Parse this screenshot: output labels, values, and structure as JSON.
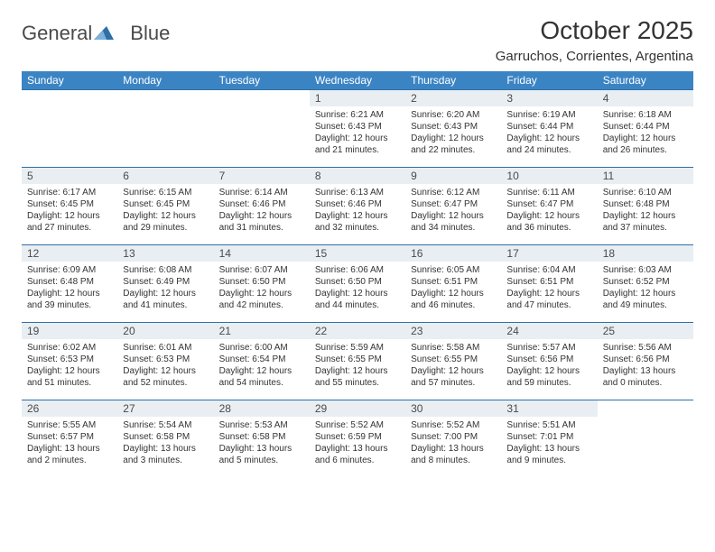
{
  "brand": {
    "word1": "General",
    "word2": "Blue"
  },
  "title": "October 2025",
  "location": "Garruchos, Corrientes, Argentina",
  "colors": {
    "header_bg": "#3b84c4",
    "header_text": "#ffffff",
    "rule": "#2f6fa8",
    "daynum_bg": "#e9eef2",
    "text": "#333333",
    "brand_gray": "#4a4a4a",
    "brand_blue": "#2f6fa8"
  },
  "weekdays": [
    "Sunday",
    "Monday",
    "Tuesday",
    "Wednesday",
    "Thursday",
    "Friday",
    "Saturday"
  ],
  "weeks": [
    [
      {
        "empty": true
      },
      {
        "empty": true
      },
      {
        "empty": true
      },
      {
        "n": "1",
        "sr": "Sunrise: 6:21 AM",
        "ss": "Sunset: 6:43 PM",
        "d1": "Daylight: 12 hours",
        "d2": "and 21 minutes."
      },
      {
        "n": "2",
        "sr": "Sunrise: 6:20 AM",
        "ss": "Sunset: 6:43 PM",
        "d1": "Daylight: 12 hours",
        "d2": "and 22 minutes."
      },
      {
        "n": "3",
        "sr": "Sunrise: 6:19 AM",
        "ss": "Sunset: 6:44 PM",
        "d1": "Daylight: 12 hours",
        "d2": "and 24 minutes."
      },
      {
        "n": "4",
        "sr": "Sunrise: 6:18 AM",
        "ss": "Sunset: 6:44 PM",
        "d1": "Daylight: 12 hours",
        "d2": "and 26 minutes."
      }
    ],
    [
      {
        "n": "5",
        "sr": "Sunrise: 6:17 AM",
        "ss": "Sunset: 6:45 PM",
        "d1": "Daylight: 12 hours",
        "d2": "and 27 minutes."
      },
      {
        "n": "6",
        "sr": "Sunrise: 6:15 AM",
        "ss": "Sunset: 6:45 PM",
        "d1": "Daylight: 12 hours",
        "d2": "and 29 minutes."
      },
      {
        "n": "7",
        "sr": "Sunrise: 6:14 AM",
        "ss": "Sunset: 6:46 PM",
        "d1": "Daylight: 12 hours",
        "d2": "and 31 minutes."
      },
      {
        "n": "8",
        "sr": "Sunrise: 6:13 AM",
        "ss": "Sunset: 6:46 PM",
        "d1": "Daylight: 12 hours",
        "d2": "and 32 minutes."
      },
      {
        "n": "9",
        "sr": "Sunrise: 6:12 AM",
        "ss": "Sunset: 6:47 PM",
        "d1": "Daylight: 12 hours",
        "d2": "and 34 minutes."
      },
      {
        "n": "10",
        "sr": "Sunrise: 6:11 AM",
        "ss": "Sunset: 6:47 PM",
        "d1": "Daylight: 12 hours",
        "d2": "and 36 minutes."
      },
      {
        "n": "11",
        "sr": "Sunrise: 6:10 AM",
        "ss": "Sunset: 6:48 PM",
        "d1": "Daylight: 12 hours",
        "d2": "and 37 minutes."
      }
    ],
    [
      {
        "n": "12",
        "sr": "Sunrise: 6:09 AM",
        "ss": "Sunset: 6:48 PM",
        "d1": "Daylight: 12 hours",
        "d2": "and 39 minutes."
      },
      {
        "n": "13",
        "sr": "Sunrise: 6:08 AM",
        "ss": "Sunset: 6:49 PM",
        "d1": "Daylight: 12 hours",
        "d2": "and 41 minutes."
      },
      {
        "n": "14",
        "sr": "Sunrise: 6:07 AM",
        "ss": "Sunset: 6:50 PM",
        "d1": "Daylight: 12 hours",
        "d2": "and 42 minutes."
      },
      {
        "n": "15",
        "sr": "Sunrise: 6:06 AM",
        "ss": "Sunset: 6:50 PM",
        "d1": "Daylight: 12 hours",
        "d2": "and 44 minutes."
      },
      {
        "n": "16",
        "sr": "Sunrise: 6:05 AM",
        "ss": "Sunset: 6:51 PM",
        "d1": "Daylight: 12 hours",
        "d2": "and 46 minutes."
      },
      {
        "n": "17",
        "sr": "Sunrise: 6:04 AM",
        "ss": "Sunset: 6:51 PM",
        "d1": "Daylight: 12 hours",
        "d2": "and 47 minutes."
      },
      {
        "n": "18",
        "sr": "Sunrise: 6:03 AM",
        "ss": "Sunset: 6:52 PM",
        "d1": "Daylight: 12 hours",
        "d2": "and 49 minutes."
      }
    ],
    [
      {
        "n": "19",
        "sr": "Sunrise: 6:02 AM",
        "ss": "Sunset: 6:53 PM",
        "d1": "Daylight: 12 hours",
        "d2": "and 51 minutes."
      },
      {
        "n": "20",
        "sr": "Sunrise: 6:01 AM",
        "ss": "Sunset: 6:53 PM",
        "d1": "Daylight: 12 hours",
        "d2": "and 52 minutes."
      },
      {
        "n": "21",
        "sr": "Sunrise: 6:00 AM",
        "ss": "Sunset: 6:54 PM",
        "d1": "Daylight: 12 hours",
        "d2": "and 54 minutes."
      },
      {
        "n": "22",
        "sr": "Sunrise: 5:59 AM",
        "ss": "Sunset: 6:55 PM",
        "d1": "Daylight: 12 hours",
        "d2": "and 55 minutes."
      },
      {
        "n": "23",
        "sr": "Sunrise: 5:58 AM",
        "ss": "Sunset: 6:55 PM",
        "d1": "Daylight: 12 hours",
        "d2": "and 57 minutes."
      },
      {
        "n": "24",
        "sr": "Sunrise: 5:57 AM",
        "ss": "Sunset: 6:56 PM",
        "d1": "Daylight: 12 hours",
        "d2": "and 59 minutes."
      },
      {
        "n": "25",
        "sr": "Sunrise: 5:56 AM",
        "ss": "Sunset: 6:56 PM",
        "d1": "Daylight: 13 hours",
        "d2": "and 0 minutes."
      }
    ],
    [
      {
        "n": "26",
        "sr": "Sunrise: 5:55 AM",
        "ss": "Sunset: 6:57 PM",
        "d1": "Daylight: 13 hours",
        "d2": "and 2 minutes."
      },
      {
        "n": "27",
        "sr": "Sunrise: 5:54 AM",
        "ss": "Sunset: 6:58 PM",
        "d1": "Daylight: 13 hours",
        "d2": "and 3 minutes."
      },
      {
        "n": "28",
        "sr": "Sunrise: 5:53 AM",
        "ss": "Sunset: 6:58 PM",
        "d1": "Daylight: 13 hours",
        "d2": "and 5 minutes."
      },
      {
        "n": "29",
        "sr": "Sunrise: 5:52 AM",
        "ss": "Sunset: 6:59 PM",
        "d1": "Daylight: 13 hours",
        "d2": "and 6 minutes."
      },
      {
        "n": "30",
        "sr": "Sunrise: 5:52 AM",
        "ss": "Sunset: 7:00 PM",
        "d1": "Daylight: 13 hours",
        "d2": "and 8 minutes."
      },
      {
        "n": "31",
        "sr": "Sunrise: 5:51 AM",
        "ss": "Sunset: 7:01 PM",
        "d1": "Daylight: 13 hours",
        "d2": "and 9 minutes."
      },
      {
        "empty": true
      }
    ]
  ]
}
